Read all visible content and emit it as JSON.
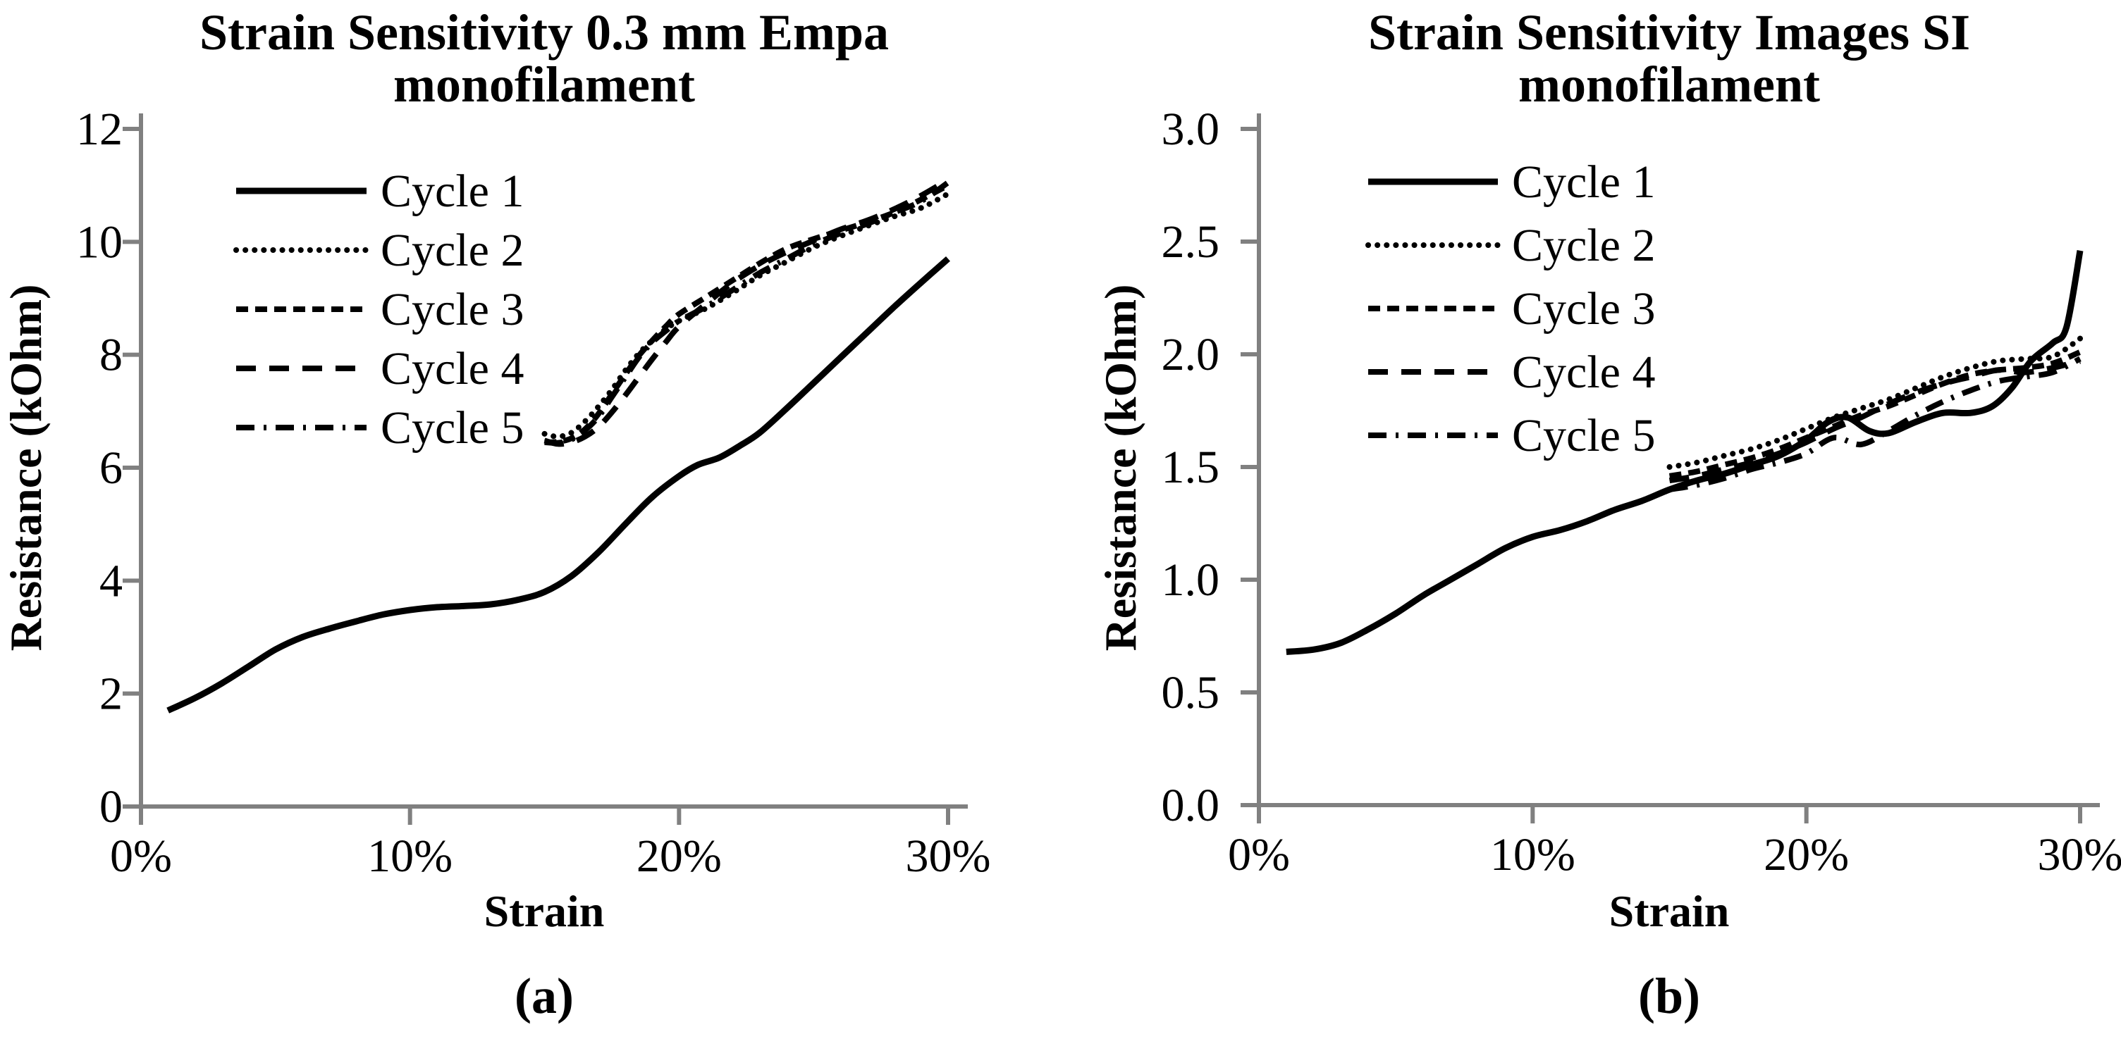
{
  "figure": {
    "background": "#ffffff",
    "axis_color": "#808080",
    "line_color": "#000000",
    "captions": [
      "(a)",
      "(b)"
    ]
  },
  "chart_data": [
    {
      "type": "line",
      "title": "Strain Sensitivity 0.3 mm Empa monofilament",
      "title_lines": [
        "Strain Sensitivity 0.3 mm Empa",
        "monofilament"
      ],
      "xlabel": "Strain",
      "ylabel": "Resistance (kOhm)",
      "xlim_pct": [
        0,
        30
      ],
      "ylim": [
        0,
        12
      ],
      "x_ticks_pct": [
        0,
        10,
        20,
        30
      ],
      "x_tick_labels": [
        "0%",
        "10%",
        "20%",
        "30%"
      ],
      "y_ticks": [
        0,
        2,
        4,
        6,
        8,
        10,
        12
      ],
      "y_tick_labels": [
        "0",
        "2",
        "4",
        "6",
        "8",
        "10",
        "12"
      ],
      "grid": false,
      "legend_position": "upper-left-inside",
      "series": [
        {
          "name": "Cycle 1",
          "style": "solid",
          "x": [
            1,
            2,
            3,
            4,
            5,
            6,
            7,
            8,
            9,
            10,
            11,
            12,
            13,
            14,
            15,
            16,
            17,
            18,
            19,
            20,
            20.7,
            21.5,
            22.3,
            23,
            24,
            25,
            26,
            27,
            28,
            29,
            30
          ],
          "y": [
            1.7,
            1.92,
            2.18,
            2.48,
            2.78,
            3.0,
            3.15,
            3.28,
            3.4,
            3.48,
            3.53,
            3.55,
            3.58,
            3.66,
            3.8,
            4.08,
            4.5,
            5.0,
            5.48,
            5.85,
            6.05,
            6.18,
            6.4,
            6.62,
            7.05,
            7.5,
            7.95,
            8.4,
            8.85,
            9.28,
            9.7
          ]
        },
        {
          "name": "Cycle 2",
          "style": "dotted",
          "x": [
            15,
            15.5,
            16,
            16.5,
            17,
            17.5,
            18,
            18.5,
            19,
            19.5,
            20,
            21,
            22,
            23,
            24,
            25,
            26,
            27,
            28,
            29,
            30
          ],
          "y": [
            6.6,
            6.55,
            6.62,
            6.82,
            7.08,
            7.38,
            7.72,
            8.02,
            8.25,
            8.45,
            8.6,
            8.82,
            9.1,
            9.4,
            9.65,
            9.9,
            10.1,
            10.28,
            10.45,
            10.6,
            10.85
          ]
        },
        {
          "name": "Cycle 3",
          "style": "dash-short",
          "x": [
            15,
            15.5,
            16,
            16.5,
            17,
            17.5,
            18,
            18.5,
            19,
            19.5,
            20,
            21,
            22,
            23,
            24,
            25,
            26,
            27,
            28,
            29,
            30
          ],
          "y": [
            6.45,
            6.46,
            6.52,
            6.68,
            6.95,
            7.3,
            7.65,
            7.98,
            8.25,
            8.5,
            8.72,
            9.02,
            9.32,
            9.62,
            9.88,
            10.05,
            10.2,
            10.35,
            10.52,
            10.75,
            11.0
          ]
        },
        {
          "name": "Cycle 4",
          "style": "dash-long",
          "x": [
            15,
            15.5,
            16,
            16.5,
            17,
            17.5,
            18,
            18.5,
            19,
            19.5,
            20,
            21,
            22,
            23,
            24,
            25,
            26,
            27,
            28,
            29,
            30
          ],
          "y": [
            6.48,
            6.42,
            6.45,
            6.55,
            6.72,
            6.98,
            7.28,
            7.6,
            7.92,
            8.22,
            8.5,
            8.9,
            9.28,
            9.58,
            9.82,
            10.02,
            10.22,
            10.38,
            10.58,
            10.82,
            11.1
          ]
        },
        {
          "name": "Cycle 5",
          "style": "dash-dot",
          "x": [
            15,
            15.5,
            16,
            16.5,
            17,
            17.5,
            18,
            18.5,
            19,
            19.5,
            20,
            21,
            22,
            23,
            24,
            25,
            26,
            27,
            28,
            29,
            30
          ],
          "y": [
            6.45,
            6.44,
            6.5,
            6.66,
            6.9,
            7.25,
            7.6,
            7.95,
            8.22,
            8.42,
            8.6,
            8.85,
            9.15,
            9.45,
            9.7,
            9.95,
            10.15,
            10.32,
            10.52,
            10.72,
            11.05
          ]
        }
      ]
    },
    {
      "type": "line",
      "title": "Strain Sensitivity Images SI monofilament",
      "title_lines": [
        "Strain Sensitivity Images SI",
        "monofilament"
      ],
      "xlabel": "Strain",
      "ylabel": "Resistance (kOhm)",
      "xlim_pct": [
        0,
        30
      ],
      "ylim": [
        0,
        3
      ],
      "x_ticks_pct": [
        0,
        10,
        20,
        30
      ],
      "x_tick_labels": [
        "0%",
        "10%",
        "20%",
        "30%"
      ],
      "y_ticks": [
        0,
        0.5,
        1.0,
        1.5,
        2.0,
        2.5,
        3.0
      ],
      "y_tick_labels": [
        "0.0",
        "0.5",
        "1.0",
        "1.5",
        "2.0",
        "2.5",
        "3.0"
      ],
      "grid": false,
      "legend_position": "upper-left-inside",
      "series": [
        {
          "name": "Cycle 1",
          "style": "solid",
          "x": [
            1,
            2,
            3,
            4,
            5,
            6,
            7,
            8,
            9,
            10,
            11,
            12,
            13,
            14,
            15,
            16,
            17,
            18,
            19,
            20,
            20.8,
            21.5,
            22.3,
            23,
            24,
            25,
            26,
            26.8,
            27.5,
            28.2,
            29,
            29.5,
            30
          ],
          "y": [
            0.68,
            0.69,
            0.72,
            0.78,
            0.85,
            0.93,
            1.0,
            1.07,
            1.14,
            1.19,
            1.22,
            1.26,
            1.31,
            1.35,
            1.4,
            1.44,
            1.47,
            1.51,
            1.55,
            1.62,
            1.7,
            1.72,
            1.66,
            1.65,
            1.7,
            1.74,
            1.74,
            1.77,
            1.85,
            1.97,
            2.05,
            2.12,
            2.46
          ]
        },
        {
          "name": "Cycle 2",
          "style": "dotted",
          "x": [
            15,
            16,
            17,
            18,
            19,
            20,
            21,
            22,
            23,
            24,
            25,
            26,
            27,
            28,
            29,
            30
          ],
          "y": [
            1.5,
            1.52,
            1.55,
            1.58,
            1.62,
            1.67,
            1.72,
            1.76,
            1.8,
            1.85,
            1.9,
            1.94,
            1.97,
            1.98,
            1.99,
            2.07
          ]
        },
        {
          "name": "Cycle 3",
          "style": "dash-short",
          "x": [
            15,
            16,
            17,
            18,
            19,
            20,
            21,
            22,
            23,
            24,
            25,
            26,
            27,
            28,
            29,
            30
          ],
          "y": [
            1.46,
            1.48,
            1.51,
            1.54,
            1.58,
            1.63,
            1.68,
            1.73,
            1.77,
            1.82,
            1.87,
            1.91,
            1.93,
            1.94,
            1.96,
            2.01
          ]
        },
        {
          "name": "Cycle 4",
          "style": "dash-long",
          "x": [
            15,
            16,
            17,
            18,
            19,
            20,
            21,
            22,
            23,
            24,
            25,
            26,
            27,
            28,
            29,
            30
          ],
          "y": [
            1.44,
            1.46,
            1.49,
            1.52,
            1.56,
            1.61,
            1.67,
            1.72,
            1.78,
            1.83,
            1.87,
            1.9,
            1.93,
            1.92,
            1.94,
            1.97
          ]
        },
        {
          "name": "Cycle 5",
          "style": "dash-dot",
          "x": [
            15,
            16,
            17,
            18,
            19,
            20,
            21,
            22,
            23,
            24,
            25,
            26,
            27,
            28,
            29,
            30
          ],
          "y": [
            1.4,
            1.42,
            1.45,
            1.49,
            1.52,
            1.56,
            1.63,
            1.6,
            1.66,
            1.73,
            1.79,
            1.84,
            1.88,
            1.9,
            1.92,
            1.98
          ]
        }
      ]
    }
  ]
}
